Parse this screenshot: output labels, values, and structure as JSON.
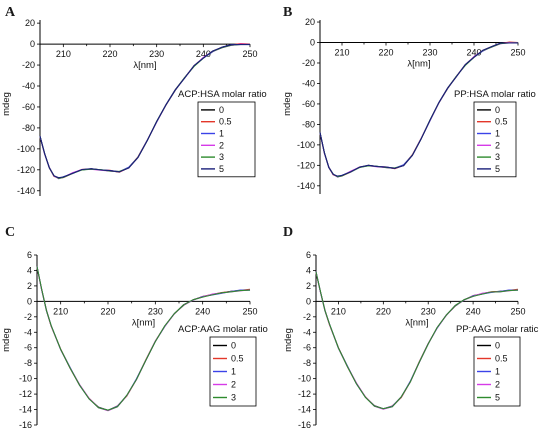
{
  "chart_data": [
    {
      "panel": "A",
      "type": "line",
      "xlabel": "λ[nm]",
      "ylabel": "mdeg",
      "xlim": [
        205,
        250
      ],
      "ylim": [
        -145,
        23
      ],
      "xticks": [
        210,
        220,
        230,
        240,
        250
      ],
      "yticks": [
        20,
        0,
        -20,
        -40,
        -60,
        -80,
        -100,
        -120,
        -140
      ],
      "legend_title": "ACP:HSA molar ratio",
      "legend_position": "right",
      "series": [
        {
          "name": "0",
          "color": "#000000"
        },
        {
          "name": "0.5",
          "color": "#e3372a"
        },
        {
          "name": "1",
          "color": "#3b43e8"
        },
        {
          "name": "2",
          "color": "#d63be8"
        },
        {
          "name": "3",
          "color": "#2e8b2e"
        },
        {
          "name": "5",
          "color": "#1b1f7a"
        }
      ],
      "x": [
        205,
        206,
        207,
        208,
        209,
        210,
        212,
        214,
        216,
        218,
        220,
        222,
        224,
        226,
        228,
        230,
        232,
        234,
        236,
        238,
        240,
        242,
        244,
        246,
        248,
        250
      ],
      "y": [
        -88,
        -105,
        -118,
        -126,
        -128,
        -127,
        -123,
        -120,
        -119,
        -120,
        -121,
        -122,
        -118,
        -108,
        -92,
        -74,
        -58,
        -44,
        -32,
        -21,
        -13,
        -7,
        -3,
        -1,
        0,
        0
      ]
    },
    {
      "panel": "B",
      "type": "line",
      "xlabel": "λ[nm]",
      "ylabel": "mdeg",
      "xlim": [
        205,
        250
      ],
      "ylim": [
        -148,
        22
      ],
      "xticks": [
        210,
        220,
        230,
        240,
        250
      ],
      "yticks": [
        20,
        0,
        -20,
        -40,
        -60,
        -80,
        -100,
        -120,
        -140
      ],
      "legend_title": "PP:HSA molar ratio",
      "legend_position": "right",
      "series": [
        {
          "name": "0",
          "color": "#000000"
        },
        {
          "name": "0.5",
          "color": "#e3372a"
        },
        {
          "name": "1",
          "color": "#3b43e8"
        },
        {
          "name": "2",
          "color": "#d63be8"
        },
        {
          "name": "3",
          "color": "#2e8b2e"
        },
        {
          "name": "5",
          "color": "#1b1f7a"
        }
      ],
      "x": [
        205,
        206,
        207,
        208,
        209,
        210,
        212,
        214,
        216,
        218,
        220,
        222,
        224,
        226,
        228,
        230,
        232,
        234,
        236,
        238,
        240,
        242,
        244,
        246,
        248,
        250
      ],
      "y": [
        -88,
        -108,
        -122,
        -129,
        -131,
        -130,
        -126,
        -122,
        -120,
        -121,
        -122,
        -123,
        -120,
        -110,
        -94,
        -76,
        -59,
        -45,
        -33,
        -22,
        -14,
        -8,
        -4,
        -1,
        0,
        0
      ]
    },
    {
      "panel": "C",
      "type": "line",
      "xlabel": "λ[nm]",
      "ylabel": "mdeg",
      "xlim": [
        205,
        250
      ],
      "ylim": [
        -16,
        6
      ],
      "xticks": [
        210,
        220,
        230,
        240,
        250
      ],
      "yticks": [
        6,
        4,
        2,
        0,
        -2,
        -4,
        -6,
        -8,
        -10,
        -12,
        -14,
        -16
      ],
      "legend_title": "ACP:AAG molar ratio",
      "legend_position": "right",
      "series": [
        {
          "name": "0",
          "color": "#000000"
        },
        {
          "name": "0.5",
          "color": "#e3372a"
        },
        {
          "name": "1",
          "color": "#3b43e8"
        },
        {
          "name": "2",
          "color": "#d63be8"
        },
        {
          "name": "3",
          "color": "#2e8b2e"
        }
      ],
      "x": [
        205,
        206,
        207,
        208,
        210,
        212,
        214,
        216,
        218,
        220,
        222,
        224,
        226,
        228,
        230,
        232,
        234,
        236,
        238,
        240,
        242,
        244,
        246,
        248,
        250
      ],
      "y": [
        4.5,
        1.5,
        -1.2,
        -3.2,
        -6.2,
        -8.6,
        -10.8,
        -12.6,
        -13.7,
        -14.1,
        -13.6,
        -12.2,
        -10.1,
        -7.6,
        -5.2,
        -3.2,
        -1.6,
        -0.5,
        0.2,
        0.6,
        0.9,
        1.1,
        1.3,
        1.4,
        1.5
      ]
    },
    {
      "panel": "D",
      "type": "line",
      "xlabel": "λ[nm]",
      "ylabel": "mdeg",
      "xlim": [
        205,
        250
      ],
      "ylim": [
        -16,
        6
      ],
      "xticks": [
        210,
        220,
        230,
        240,
        250
      ],
      "yticks": [
        6,
        4,
        2,
        0,
        -2,
        -4,
        -6,
        -8,
        -10,
        -12,
        -14,
        -16
      ],
      "legend_title": "PP:AAG molar ratic",
      "legend_position": "right",
      "series": [
        {
          "name": "0",
          "color": "#000000"
        },
        {
          "name": "0.5",
          "color": "#e3372a"
        },
        {
          "name": "1",
          "color": "#3b43e8"
        },
        {
          "name": "2",
          "color": "#d63be8"
        },
        {
          "name": "5",
          "color": "#2e8b2e"
        }
      ],
      "x": [
        205,
        206,
        207,
        208,
        210,
        212,
        214,
        216,
        218,
        220,
        222,
        224,
        226,
        228,
        230,
        232,
        234,
        236,
        238,
        240,
        242,
        244,
        246,
        248,
        250
      ],
      "y": [
        3.8,
        1.2,
        -1.2,
        -3.0,
        -6.0,
        -8.4,
        -10.6,
        -12.4,
        -13.5,
        -13.9,
        -13.6,
        -12.4,
        -10.4,
        -7.9,
        -5.5,
        -3.4,
        -1.8,
        -0.6,
        0.2,
        0.7,
        1.0,
        1.2,
        1.3,
        1.4,
        1.5
      ]
    }
  ]
}
